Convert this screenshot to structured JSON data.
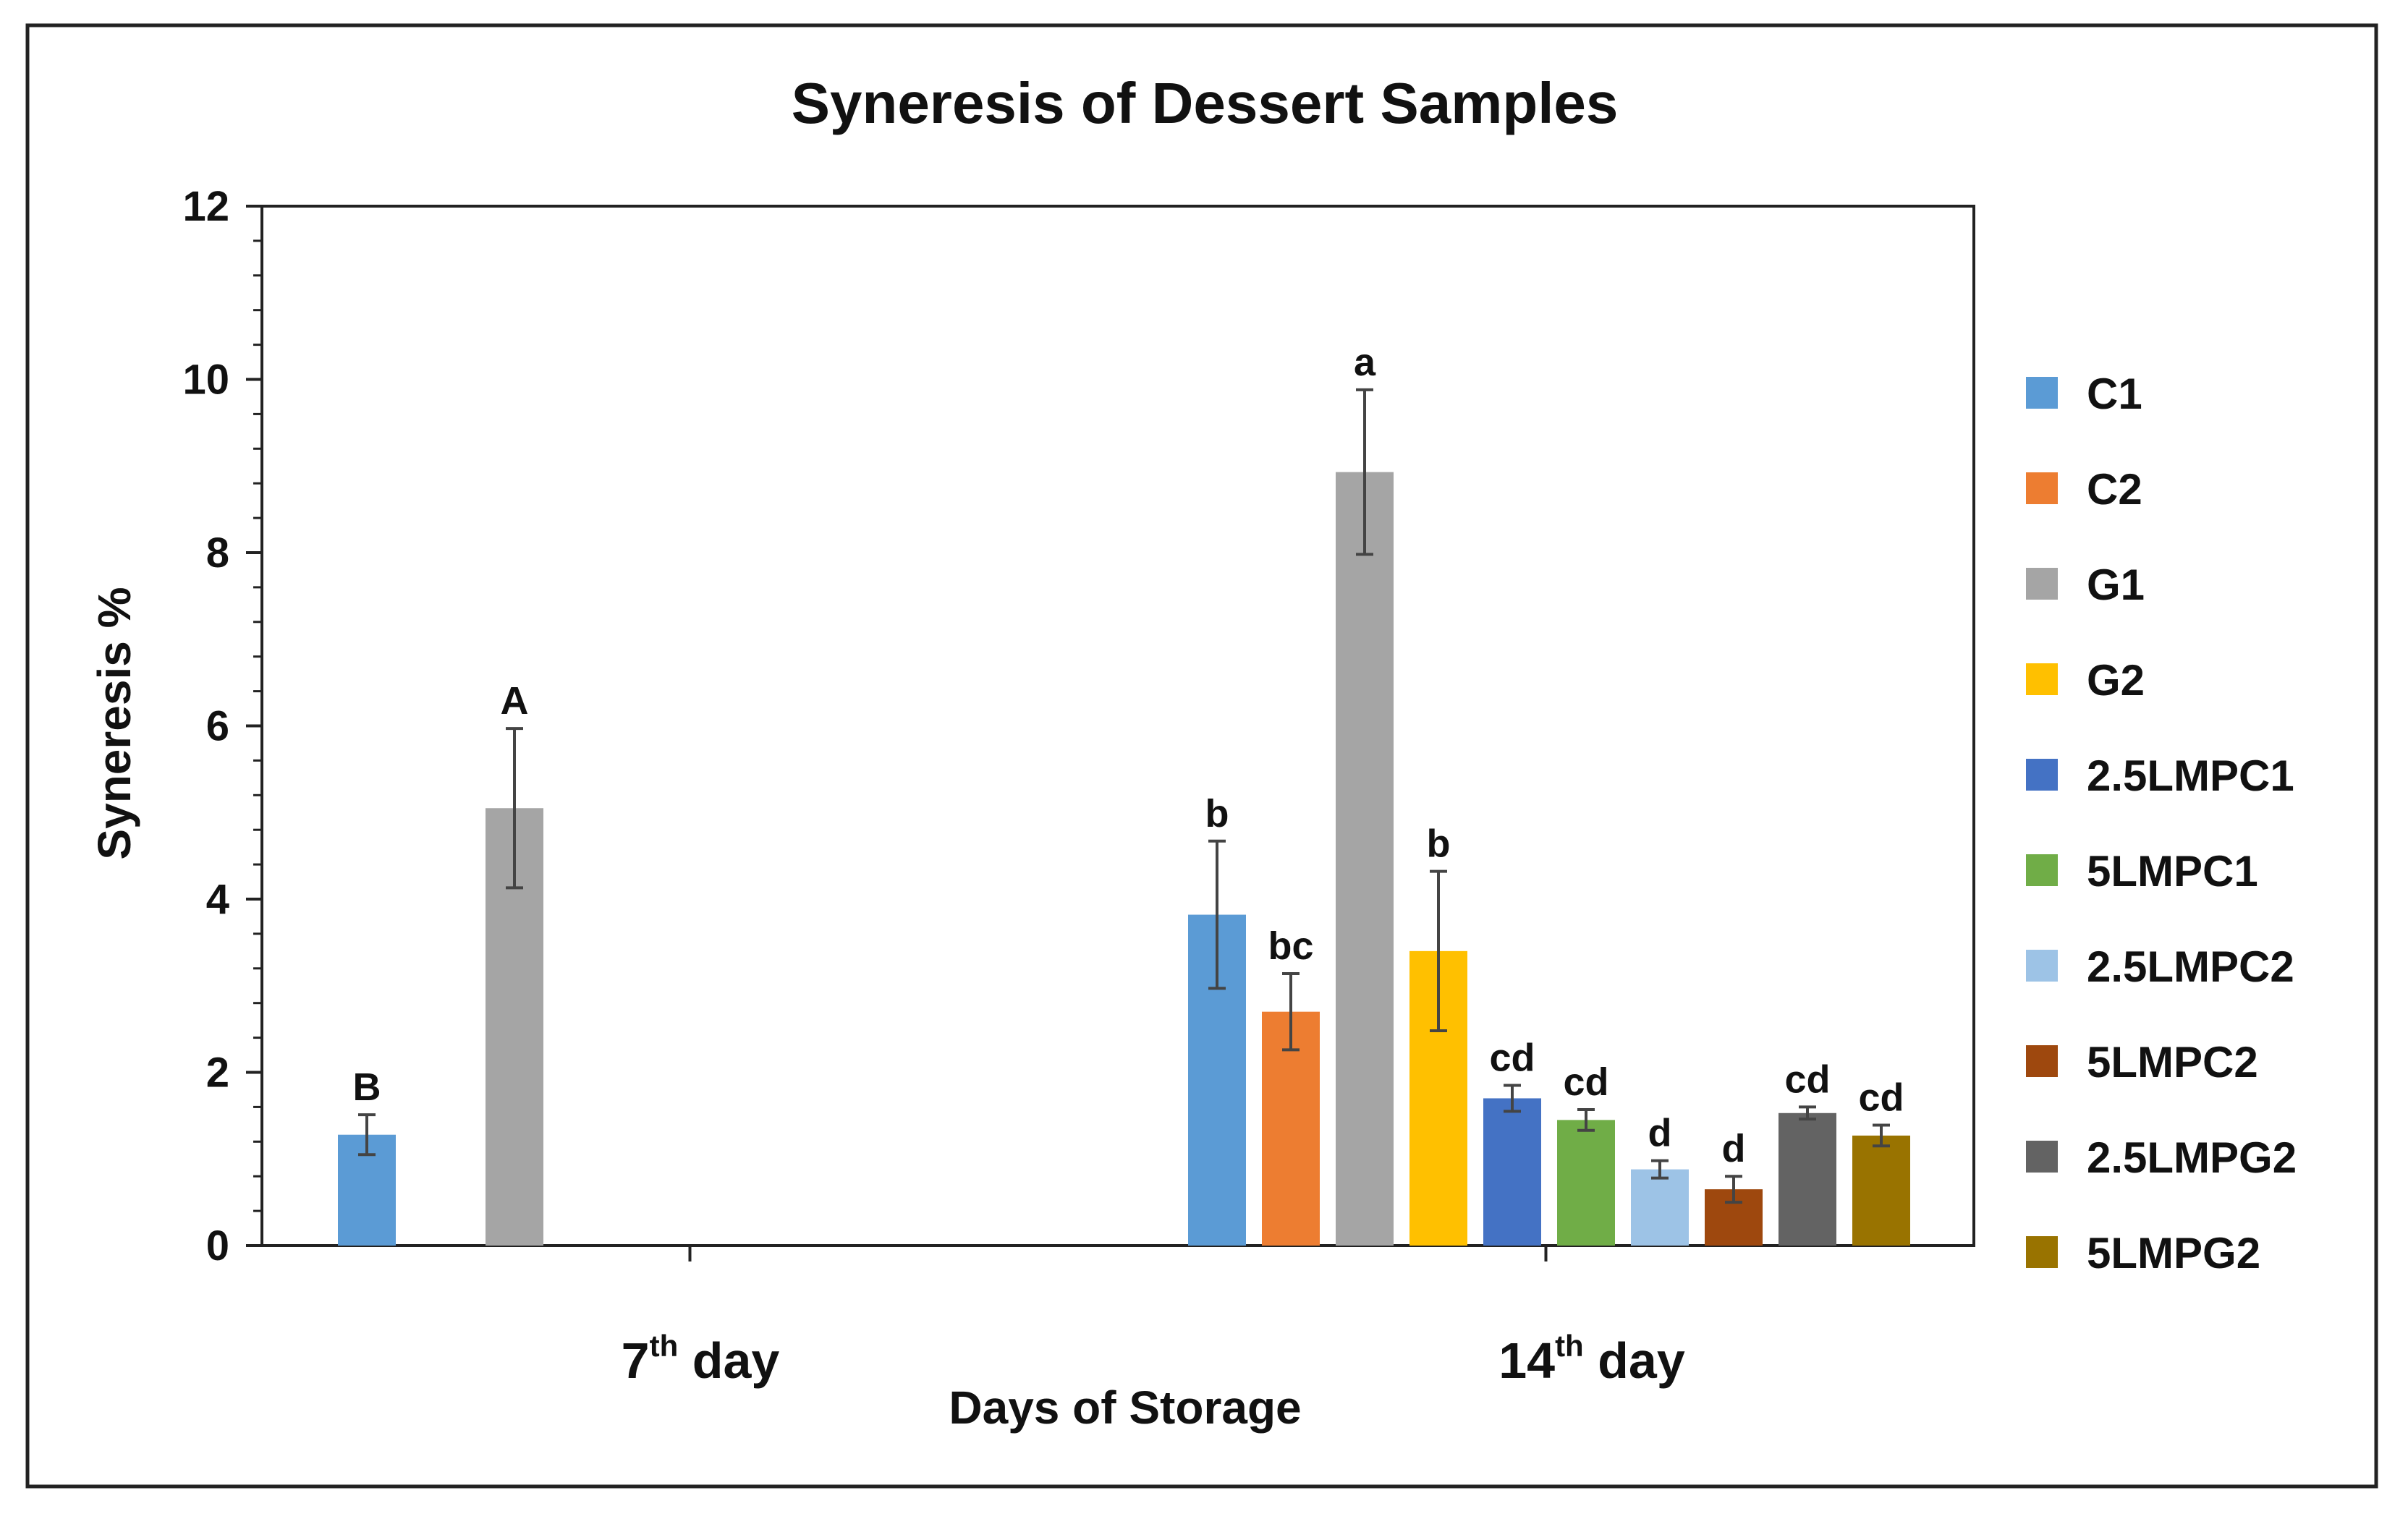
{
  "chart_data": {
    "type": "bar",
    "title": "Syneresis of Dessert Samples",
    "xlabel": "Days of Storage",
    "ylabel": "Syneresis %",
    "ylim": [
      0,
      12
    ],
    "yticks": [
      0,
      2,
      4,
      6,
      8,
      10,
      12
    ],
    "legend_position": "right",
    "grid": false,
    "categories": [
      {
        "base": "7",
        "sup": "th",
        "tail": " day"
      },
      {
        "base": "14",
        "sup": "th",
        "tail": " day"
      }
    ],
    "series": [
      {
        "name": "C1",
        "color": "#5B9BD5",
        "values": [
          1.28,
          3.82
        ],
        "errors": [
          0.23,
          0.85
        ],
        "letters": [
          "B",
          "b"
        ]
      },
      {
        "name": "C2",
        "color": "#ED7D31",
        "values": [
          null,
          2.7
        ],
        "errors": [
          null,
          0.44
        ],
        "letters": [
          null,
          "bc"
        ]
      },
      {
        "name": "G1",
        "color": "#A5A5A5",
        "values": [
          5.05,
          8.93
        ],
        "errors": [
          0.92,
          0.95
        ],
        "letters": [
          "A",
          "a"
        ]
      },
      {
        "name": "G2",
        "color": "#FFC000",
        "values": [
          null,
          3.4
        ],
        "errors": [
          null,
          0.92
        ],
        "letters": [
          null,
          "b"
        ]
      },
      {
        "name": "2.5LMPC1",
        "color": "#4472C4",
        "values": [
          null,
          1.7
        ],
        "errors": [
          null,
          0.15
        ],
        "letters": [
          null,
          "cd"
        ]
      },
      {
        "name": "5LMPC1",
        "color": "#70AD47",
        "values": [
          null,
          1.45
        ],
        "errors": [
          null,
          0.12
        ],
        "letters": [
          null,
          "cd"
        ]
      },
      {
        "name": "2.5LMPC2",
        "color": "#9DC3E6",
        "values": [
          null,
          0.88
        ],
        "errors": [
          null,
          0.1
        ],
        "letters": [
          null,
          "d"
        ]
      },
      {
        "name": "5LMPC2",
        "color": "#9E480E",
        "values": [
          null,
          0.65
        ],
        "errors": [
          null,
          0.15
        ],
        "letters": [
          null,
          "d"
        ]
      },
      {
        "name": "2.5LMPG2",
        "color": "#636363",
        "values": [
          null,
          1.53
        ],
        "errors": [
          null,
          0.07
        ],
        "letters": [
          null,
          "cd"
        ]
      },
      {
        "name": "5LMPG2",
        "color": "#997300",
        "values": [
          null,
          1.27
        ],
        "errors": [
          null,
          0.12
        ],
        "letters": [
          null,
          "cd"
        ]
      }
    ]
  }
}
